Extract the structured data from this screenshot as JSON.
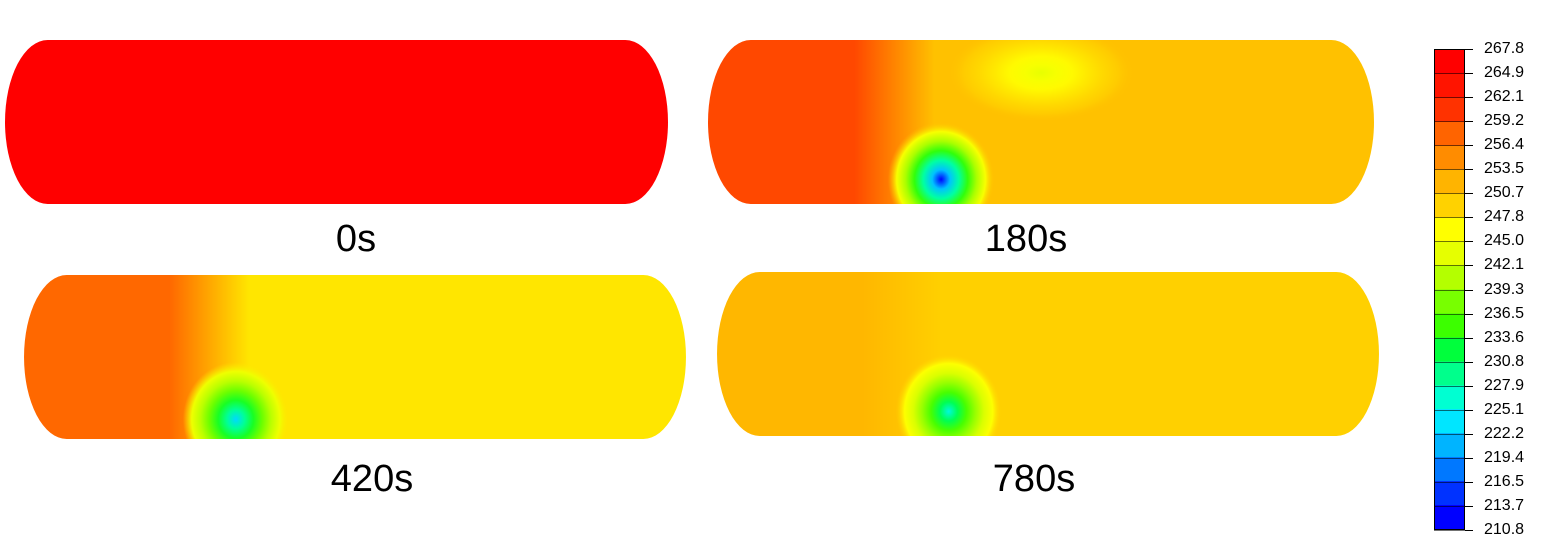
{
  "chart_data": {
    "type": "heatmap",
    "description_units": "temperature",
    "panels": [
      {
        "label": "0s",
        "dominant_value": 267.8,
        "hotspots": []
      },
      {
        "label": "180s",
        "dominant_value": 251.5,
        "left_end_value": 260.5,
        "hotspots": [
          {
            "region": "lower-center",
            "min_value": 211.0,
            "description": "cold pocket"
          },
          {
            "region": "upper-center",
            "value": 244.0
          }
        ]
      },
      {
        "label": "420s",
        "dominant_value": 248.5,
        "left_end_value": 258.5,
        "hotspots": [
          {
            "region": "lower-left-center",
            "min_value": 222.0,
            "description": "cold pocket"
          }
        ]
      },
      {
        "label": "780s",
        "dominant_value": 250.0,
        "left_end_value": 252.5,
        "hotspots": [
          {
            "region": "lower-center",
            "min_value": 225.0,
            "description": "cold pocket"
          }
        ]
      }
    ],
    "colorbar": {
      "min": 210.8,
      "max": 267.8,
      "tick_labels": [
        "267.8",
        "264.9",
        "262.1",
        "259.2",
        "256.4",
        "253.5",
        "250.7",
        "247.8",
        "245.0",
        "242.1",
        "239.3",
        "236.5",
        "233.6",
        "230.8",
        "227.9",
        "225.1",
        "222.2",
        "219.4",
        "216.5",
        "213.7",
        "210.8"
      ],
      "colors": [
        "#0000ff",
        "#0032ff",
        "#0078ff",
        "#00b4ff",
        "#00e6ff",
        "#00ffd2",
        "#00ff8c",
        "#00ff3c",
        "#3cff00",
        "#78ff00",
        "#b4ff00",
        "#e6ff00",
        "#ffff00",
        "#ffd200",
        "#ffb400",
        "#ff8c00",
        "#ff6400",
        "#ff3200",
        "#ff1400",
        "#ff0000"
      ],
      "position": "right"
    }
  }
}
